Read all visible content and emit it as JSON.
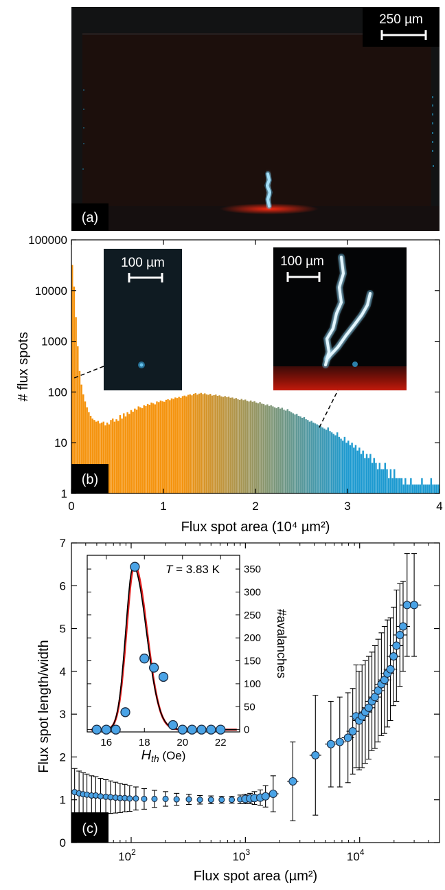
{
  "panel_a": {
    "tag": "(a)",
    "scale_bar": "250 µm"
  },
  "panel_b": {
    "tag": "(b)",
    "inset_left_scale": "100 µm",
    "inset_right_scale": "100 µm"
  },
  "panel_c": {
    "tag": "(c)",
    "inset_temperature_var": "T",
    "inset_temperature_rest": " = 3.83 K"
  },
  "colors": {
    "orange": "#f5940f",
    "blue": "#1f9bd1",
    "marker": "#4aa3e6",
    "fit_red": "#e32222",
    "fit_black": "#000000"
  },
  "chart_data": [
    {
      "type": "bar",
      "xlabel": "Flux spot area (10⁴ µm²)",
      "ylabel": "# flux spots",
      "xlim": [
        0,
        4
      ],
      "ylim": [
        1,
        100000
      ],
      "yscale": "log",
      "xticks": [
        "0",
        "1",
        "2",
        "3",
        "4"
      ],
      "yticks": [
        "1",
        "10",
        "100",
        "1000",
        "10000",
        "100000"
      ],
      "bin_width": 0.02,
      "x": [
        0.01,
        0.03,
        0.05,
        0.07,
        0.09,
        0.11,
        0.13,
        0.15,
        0.17,
        0.19,
        0.21,
        0.23,
        0.25,
        0.27,
        0.29,
        0.31,
        0.33,
        0.35,
        0.37,
        0.39,
        0.41,
        0.43,
        0.45,
        0.47,
        0.49,
        0.51,
        0.53,
        0.55,
        0.57,
        0.59,
        0.61,
        0.63,
        0.65,
        0.67,
        0.69,
        0.71,
        0.73,
        0.75,
        0.77,
        0.79,
        0.81,
        0.83,
        0.85,
        0.87,
        0.89,
        0.91,
        0.93,
        0.95,
        0.97,
        0.99,
        1.01,
        1.03,
        1.05,
        1.07,
        1.09,
        1.11,
        1.13,
        1.15,
        1.17,
        1.19,
        1.21,
        1.23,
        1.25,
        1.27,
        1.29,
        1.31,
        1.33,
        1.35,
        1.37,
        1.39,
        1.41,
        1.43,
        1.45,
        1.47,
        1.49,
        1.51,
        1.53,
        1.55,
        1.57,
        1.59,
        1.61,
        1.63,
        1.65,
        1.67,
        1.69,
        1.71,
        1.73,
        1.75,
        1.77,
        1.79,
        1.81,
        1.83,
        1.85,
        1.87,
        1.89,
        1.91,
        1.93,
        1.95,
        1.97,
        1.99,
        2.01,
        2.03,
        2.05,
        2.07,
        2.09,
        2.11,
        2.13,
        2.15,
        2.17,
        2.19,
        2.21,
        2.23,
        2.25,
        2.27,
        2.29,
        2.31,
        2.33,
        2.35,
        2.37,
        2.39,
        2.41,
        2.43,
        2.45,
        2.47,
        2.49,
        2.51,
        2.53,
        2.55,
        2.57,
        2.59,
        2.61,
        2.63,
        2.65,
        2.67,
        2.69,
        2.71,
        2.73,
        2.75,
        2.77,
        2.79,
        2.81,
        2.83,
        2.85,
        2.87,
        2.89,
        2.91,
        2.93,
        2.95,
        2.97,
        2.99,
        3.01,
        3.03,
        3.05,
        3.07,
        3.09,
        3.11,
        3.13,
        3.15,
        3.17,
        3.19,
        3.21,
        3.23,
        3.25,
        3.27,
        3.29,
        3.31,
        3.33,
        3.35,
        3.37,
        3.39,
        3.41,
        3.43,
        3.45,
        3.47,
        3.49,
        3.51,
        3.53,
        3.55,
        3.57,
        3.59,
        3.61,
        3.63,
        3.65,
        3.67,
        3.69,
        3.71,
        3.73,
        3.75,
        3.77,
        3.79,
        3.81,
        3.83,
        3.85,
        3.87,
        3.89,
        3.91,
        3.93,
        3.95,
        3.97,
        3.99
      ],
      "values": [
        32000,
        12000,
        3000,
        800,
        260,
        140,
        90,
        65,
        50,
        40,
        34,
        30,
        28,
        26,
        27,
        24,
        25,
        26,
        22,
        25,
        23,
        28,
        30,
        26,
        29,
        27,
        35,
        30,
        38,
        33,
        40,
        37,
        44,
        41,
        47,
        45,
        52,
        50,
        48,
        55,
        53,
        58,
        56,
        62,
        60,
        57,
        65,
        63,
        68,
        66,
        64,
        70,
        72,
        69,
        75,
        73,
        78,
        76,
        80,
        77,
        83,
        85,
        82,
        88,
        90,
        86,
        92,
        95,
        89,
        93,
        96,
        91,
        94,
        90,
        88,
        92,
        85,
        87,
        89,
        84,
        86,
        82,
        80,
        83,
        79,
        81,
        77,
        78,
        74,
        76,
        72,
        70,
        73,
        69,
        71,
        67,
        65,
        68,
        64,
        66,
        62,
        60,
        63,
        59,
        58,
        55,
        57,
        53,
        55,
        52,
        50,
        48,
        51,
        47,
        49,
        45,
        43,
        46,
        42,
        40,
        38,
        36,
        37,
        34,
        33,
        31,
        32,
        29,
        28,
        26,
        27,
        25,
        24,
        23,
        22,
        21,
        20,
        19,
        18,
        20,
        17,
        16,
        15,
        14,
        16,
        13,
        12,
        11,
        13,
        10,
        11,
        9,
        10,
        8,
        9,
        7,
        8,
        6,
        7,
        5,
        6,
        5,
        6,
        4,
        5,
        4,
        3,
        4,
        3,
        3,
        4,
        3,
        2,
        3,
        2,
        3,
        2,
        2,
        2,
        2,
        1.5,
        2,
        1.5,
        1.5,
        2,
        1.5,
        1.5,
        1.5,
        1.5,
        1.5,
        2,
        1.5,
        1.5,
        1.5,
        1.5,
        2,
        1.5,
        1.5,
        1.5,
        1.5
      ]
    },
    {
      "type": "scatter",
      "xlabel": "Flux spot area (µm²)",
      "ylabel": "Flux spot length/width",
      "xscale": "log",
      "xlim": [
        30,
        50000
      ],
      "ylim": [
        0,
        7
      ],
      "xticks": [
        {
          "value": 100,
          "base": "10",
          "exp": "2"
        },
        {
          "value": 1000,
          "base": "10",
          "exp": "3"
        },
        {
          "value": 10000,
          "base": "10",
          "exp": "4"
        }
      ],
      "yticks": [
        "0",
        "1",
        "2",
        "3",
        "4",
        "5",
        "6",
        "7"
      ],
      "series": [
        {
          "x": [
            32,
            35,
            38,
            41,
            45,
            49,
            54,
            60,
            66,
            73,
            80,
            88,
            97,
            110,
            130,
            160,
            200,
            250,
            320,
            400,
            500,
            620,
            760,
            900,
            1000,
            1100,
            1200,
            1350,
            1500,
            1750,
            2600,
            4100,
            5600,
            6700,
            7900,
            8700,
            9300,
            9900,
            10500,
            11200,
            12000,
            12800,
            13600,
            14500,
            15500,
            16500,
            17500,
            18600,
            19800,
            21000,
            22500,
            24000,
            26000,
            30000
          ],
          "y": [
            1.18,
            1.15,
            1.13,
            1.12,
            1.1,
            1.1,
            1.08,
            1.07,
            1.06,
            1.05,
            1.04,
            1.04,
            1.03,
            1.03,
            1.02,
            1.02,
            1.02,
            1.01,
            1.01,
            1.0,
            1.0,
            1.0,
            1.0,
            1.01,
            1.02,
            1.03,
            1.04,
            1.05,
            1.08,
            1.14,
            1.43,
            2.04,
            2.3,
            2.35,
            2.45,
            2.6,
            2.95,
            2.85,
            2.95,
            3.05,
            3.15,
            3.3,
            3.4,
            3.55,
            3.7,
            3.8,
            3.95,
            4.05,
            4.35,
            4.6,
            4.85,
            5.05,
            5.55,
            5.55
          ],
          "err": [
            0.55,
            0.52,
            0.5,
            0.48,
            0.46,
            0.44,
            0.42,
            0.4,
            0.38,
            0.36,
            0.34,
            0.32,
            0.3,
            0.27,
            0.24,
            0.2,
            0.17,
            0.14,
            0.12,
            0.1,
            0.09,
            0.08,
            0.08,
            0.1,
            0.11,
            0.12,
            0.15,
            0.18,
            0.25,
            0.42,
            0.92,
            1.4,
            1.0,
            1.05,
            1.05,
            1.0,
            1.2,
            1.15,
            1.2,
            1.2,
            1.2,
            1.15,
            1.2,
            1.2,
            1.2,
            1.25,
            1.25,
            1.2,
            1.15,
            1.3,
            1.2,
            1.05,
            1.2,
            1.2
          ]
        }
      ]
    },
    {
      "type": "scatter",
      "xlabel_var": "H",
      "xlabel_sub": "th",
      "xlabel_unit": " (Oe)",
      "ylabel": "#avalanches",
      "xlim": [
        15,
        23
      ],
      "ylim": [
        -5,
        380
      ],
      "xticks": [
        "16",
        "18",
        "20",
        "22"
      ],
      "yticks": [
        "0",
        "50",
        "100",
        "150",
        "200",
        "250",
        "300",
        "350"
      ],
      "series": [
        {
          "x": [
            15.5,
            16.0,
            16.5,
            17.0,
            17.5,
            18.0,
            18.5,
            19.0,
            19.5,
            20.0,
            20.5,
            21.0,
            21.5,
            22.0
          ],
          "y": [
            0,
            0,
            0,
            38,
            355,
            155,
            135,
            115,
            10,
            0,
            0,
            0,
            0,
            0
          ]
        }
      ]
    }
  ]
}
